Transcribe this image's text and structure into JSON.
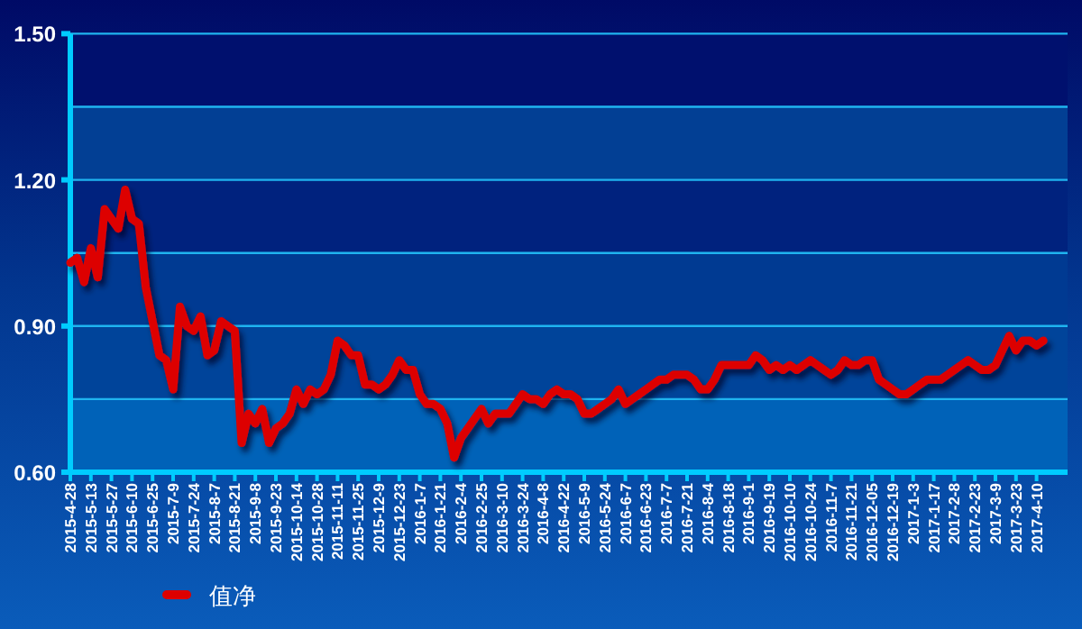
{
  "chart_data": {
    "type": "line",
    "categories": [
      "2015-4-28",
      null,
      null,
      "2015-5-13",
      null,
      null,
      "2015-5-27",
      null,
      null,
      "2015-6-10",
      null,
      null,
      "2015-6-25",
      null,
      null,
      "2015-7-9",
      null,
      null,
      "2015-7-24",
      null,
      null,
      "2015-8-7",
      null,
      null,
      "2015-8-21",
      null,
      null,
      "2015-9-8",
      null,
      null,
      "2015-9-23",
      null,
      null,
      "2015-10-14",
      null,
      null,
      "2015-10-28",
      null,
      null,
      "2015-11-11",
      null,
      null,
      "2015-11-25",
      null,
      null,
      "2015-12-9",
      null,
      null,
      "2015-12-23",
      null,
      null,
      "2016-1-7",
      null,
      null,
      "2016-1-21",
      null,
      null,
      "2016-2-4",
      null,
      null,
      "2016-2-25",
      null,
      null,
      "2016-3-10",
      null,
      null,
      "2016-3-24",
      null,
      null,
      "2016-4-8",
      null,
      null,
      "2016-4-22",
      null,
      null,
      "2016-5-9",
      null,
      null,
      "2016-5-24",
      null,
      null,
      "2016-6-7",
      null,
      null,
      "2016-6-23",
      null,
      null,
      "2016-7-7",
      null,
      null,
      "2016-7-21",
      null,
      null,
      "2016-8-4",
      null,
      null,
      "2016-8-18",
      null,
      null,
      "2016-9-1",
      null,
      null,
      "2016-9-19",
      null,
      null,
      "2016-10-10",
      null,
      null,
      "2016-10-24",
      null,
      null,
      "2016-11-7",
      null,
      null,
      "2016-11-21",
      null,
      null,
      "2016-12-05",
      null,
      null,
      "2016-12-19",
      null,
      null,
      "2017-1-3",
      null,
      null,
      "2017-1-17",
      null,
      null,
      "2017-2-8",
      null,
      null,
      "2017-2-23",
      null,
      null,
      "2017-3-9",
      null,
      null,
      "2017-3-23",
      null,
      null,
      "2017-4-10",
      null
    ],
    "series": [
      {
        "name": "值净",
        "color": "#dd0000",
        "values": [
          1.03,
          1.04,
          0.99,
          1.06,
          1.0,
          1.14,
          1.12,
          1.1,
          1.18,
          1.12,
          1.11,
          0.98,
          0.91,
          0.84,
          0.83,
          0.77,
          0.94,
          0.9,
          0.89,
          0.92,
          0.84,
          0.85,
          0.91,
          0.9,
          0.89,
          0.66,
          0.72,
          0.7,
          0.73,
          0.66,
          0.69,
          0.7,
          0.72,
          0.77,
          0.74,
          0.77,
          0.76,
          0.77,
          0.8,
          0.87,
          0.86,
          0.84,
          0.84,
          0.78,
          0.78,
          0.77,
          0.78,
          0.8,
          0.83,
          0.81,
          0.81,
          0.76,
          0.74,
          0.74,
          0.73,
          0.7,
          0.63,
          0.67,
          0.69,
          0.71,
          0.73,
          0.7,
          0.72,
          0.72,
          0.72,
          0.74,
          0.76,
          0.75,
          0.75,
          0.74,
          0.76,
          0.77,
          0.76,
          0.76,
          0.75,
          0.72,
          0.72,
          0.73,
          0.74,
          0.75,
          0.77,
          0.74,
          0.75,
          0.76,
          0.77,
          0.78,
          0.79,
          0.79,
          0.8,
          0.8,
          0.8,
          0.79,
          0.77,
          0.77,
          0.79,
          0.82,
          0.82,
          0.82,
          0.82,
          0.82,
          0.84,
          0.83,
          0.81,
          0.82,
          0.81,
          0.82,
          0.81,
          0.82,
          0.83,
          0.82,
          0.81,
          0.8,
          0.81,
          0.83,
          0.82,
          0.82,
          0.83,
          0.83,
          0.79,
          0.78,
          0.77,
          0.76,
          0.76,
          0.77,
          0.78,
          0.79,
          0.79,
          0.79,
          0.8,
          0.81,
          0.82,
          0.83,
          0.82,
          0.81,
          0.81,
          0.82,
          0.85,
          0.88,
          0.85,
          0.87,
          0.87,
          0.86,
          0.87
        ]
      }
    ],
    "ylim": [
      0.6,
      1.5
    ],
    "yticks": [
      {
        "value": 0.6,
        "label": "0.60"
      },
      {
        "value": 0.75,
        "label": null
      },
      {
        "value": 0.9,
        "label": "0.90"
      },
      {
        "value": 1.05,
        "label": null
      },
      {
        "value": 1.2,
        "label": "1.20"
      },
      {
        "value": 1.35,
        "label": null
      },
      {
        "value": 1.5,
        "label": "1.50"
      }
    ],
    "bands": [
      {
        "axis": "y",
        "from": 0.6,
        "to": 0.75,
        "color": "#0062b8"
      },
      {
        "axis": "y",
        "from": 0.75,
        "to": 0.9,
        "color": "#00449a"
      },
      {
        "axis": "y",
        "from": 0.9,
        "to": 1.05,
        "color": "#003a92"
      },
      {
        "axis": "y",
        "from": 1.05,
        "to": 1.2,
        "color": "#00227e"
      },
      {
        "axis": "y",
        "from": 1.2,
        "to": 1.35,
        "color": "#023f94"
      },
      {
        "axis": "y",
        "from": 1.35,
        "to": 1.5,
        "color": "#00106e"
      }
    ],
    "grid": "y",
    "legend": "bottom left"
  }
}
